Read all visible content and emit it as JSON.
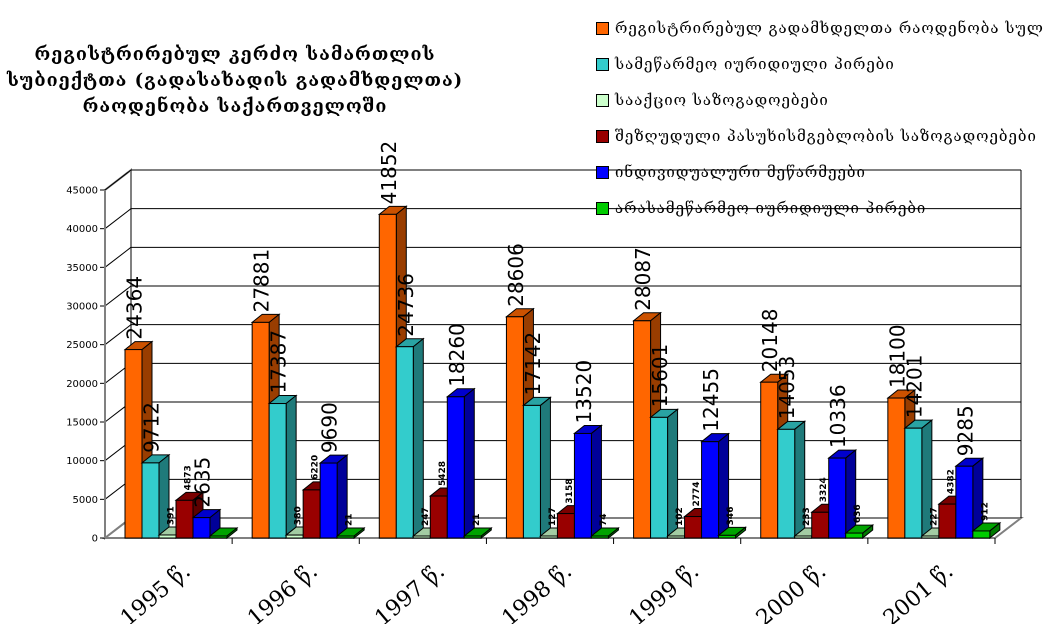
{
  "chart_data": {
    "type": "bar",
    "title": "რეგისტრირებულ კერძო სამართლის\nსუბიექტთა (გადასახადის გადამხდელთა)\nრაოდენობა საქართველოში",
    "categories": [
      "1995 წ.",
      "1996 წ.",
      "1997 წ.",
      "1998 წ.",
      "1999 წ.",
      "2000 წ.",
      "2001 წ."
    ],
    "ylim": [
      0,
      45000
    ],
    "yticks": [
      0,
      5000,
      10000,
      15000,
      20000,
      25000,
      30000,
      35000,
      40000,
      45000
    ],
    "grid": true,
    "legend_position": "top-right",
    "series": [
      {
        "name": "რეგისტრირებულ გადამხდელთა რაოდენობა სულ",
        "color": "#ff6600",
        "values": [
          24364,
          27881,
          41852,
          28606,
          28087,
          20148,
          18100
        ],
        "labels": [
          "24364",
          "27881",
          "41852",
          "28606",
          "28087",
          "20148",
          "18100"
        ]
      },
      {
        "name": "სამეწარმეო იურიდიული პირები",
        "color": "#33cccc",
        "values": [
          9712,
          17387,
          24736,
          17142,
          15601,
          14053,
          14201
        ],
        "labels": [
          "9712",
          "17387",
          "24736",
          "17142",
          "15601",
          "14053",
          "14201"
        ]
      },
      {
        "name": "სააქციო საზოგადოებები",
        "color": "#ccffcc",
        "values": [
          391,
          380,
          247,
          127,
          102,
          233,
          227
        ],
        "labels": [
          "391",
          "380",
          "247",
          "127",
          "102",
          "233",
          "227"
        ]
      },
      {
        "name": "შეზღუდული პასუხისმგებლობის საზოგადოებები",
        "color": "#990000",
        "values": [
          4873,
          6220,
          5428,
          3158,
          2774,
          3324,
          4382
        ],
        "labels": [
          "4873",
          "6220",
          "5428",
          "3158",
          "2774",
          "3324",
          "4382"
        ]
      },
      {
        "name": "ინდივიდუალური მეწარმეები",
        "color": "#0000ff",
        "values": [
          2635,
          9690,
          18260,
          13520,
          12455,
          10336,
          9285
        ],
        "labels": [
          "2635",
          "9690",
          "18260",
          "13520",
          "12455",
          "10336",
          "9285"
        ]
      },
      {
        "name": "არასამეწარმეო იურიდიული პირები",
        "color": "#00cc00",
        "values": [
          0,
          21,
          21,
          74,
          346,
          636,
          912
        ],
        "labels": [
          "",
          "21",
          "21",
          "74",
          "346",
          "636",
          "912"
        ]
      }
    ]
  }
}
